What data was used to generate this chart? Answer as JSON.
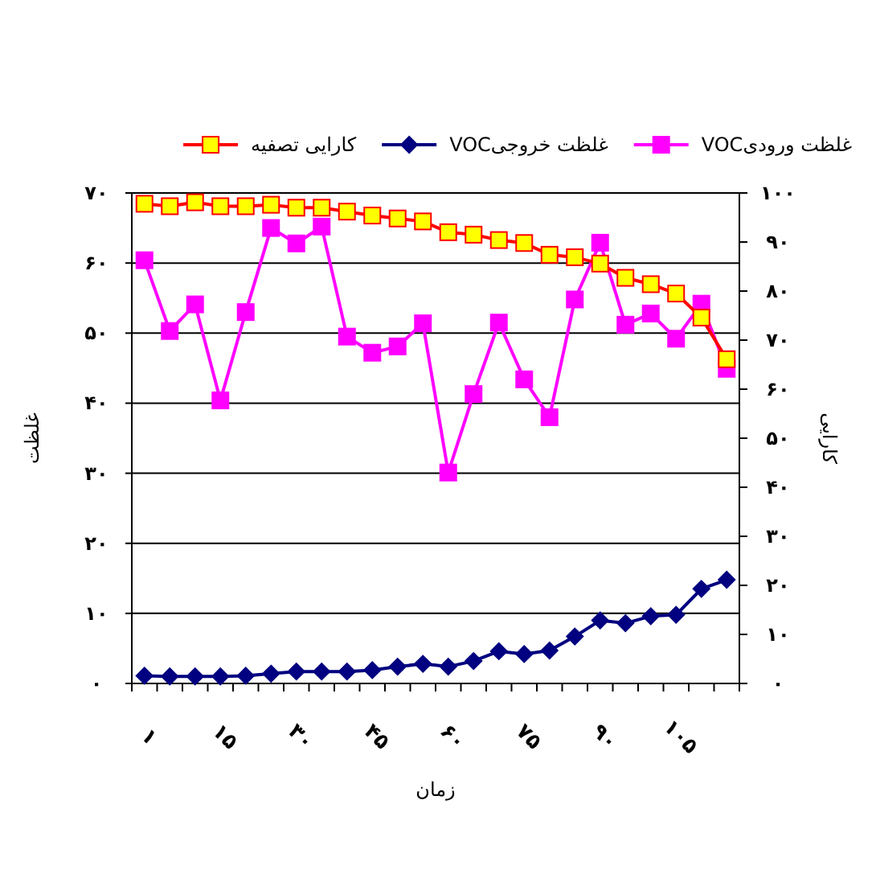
{
  "chart_data": {
    "type": "line",
    "xlabel": "زمان",
    "ylabel": "غلظت",
    "y2label": "کارایی",
    "categories": [
      "۱",
      null,
      null,
      "۱۵",
      null,
      null,
      "۳۰",
      null,
      null,
      "۴۵",
      null,
      null,
      "۶۰",
      null,
      null,
      "۷۵",
      null,
      null,
      "۹۰",
      null,
      null,
      "۱۰۵",
      null,
      null
    ],
    "series": [
      {
        "name": "غلظت ورودیVOC",
        "color": "#ff00ff",
        "marker": "square",
        "values": [
          60.4,
          50.3,
          54.1,
          40.4,
          53,
          65,
          62.8,
          65.2,
          49.5,
          47.2,
          48.1,
          51.4,
          30.1,
          41.3,
          51.5,
          43.4,
          38,
          54.8,
          62.9,
          51.2,
          52.8,
          49.2,
          54.2,
          44.9
        ]
      },
      {
        "name": "غلظت خروجیVOC",
        "color": "#000080",
        "marker": "diamond",
        "values": [
          1.1,
          1.0,
          1.0,
          1.0,
          1.1,
          1.4,
          1.7,
          1.7,
          1.7,
          1.9,
          2.4,
          2.8,
          2.4,
          3.2,
          4.6,
          4.2,
          4.7,
          6.7,
          9.0,
          8.6,
          9.6,
          9.8,
          13.5,
          14.8
        ]
      },
      {
        "name": "کارایی تصفیه",
        "color": "#ff0000",
        "colors": [
          "#ffff00",
          "#ffff00",
          "#ffff00",
          "#ffff00",
          "#ffff00",
          "#ffff00",
          "#ffff00",
          "#ffff00",
          "#ffff00",
          "#ffff00",
          "#ffff00",
          "#ffff00",
          "#ffff00",
          "#ffff00",
          "#ffff00",
          "#ffff00",
          "#ffff00",
          "#ffff00",
          "#ffff00",
          "#ffff00",
          "#ffff00",
          "#ffff00",
          "#ffff00",
          "#ffff00"
        ],
        "marker": "square",
        "axis": "y2",
        "values": [
          97.8,
          97.3,
          98.1,
          97.3,
          97.3,
          97.6,
          97.0,
          97.0,
          96.2,
          95.4,
          94.8,
          94.2,
          92.0,
          91.5,
          90.4,
          89.8,
          87.4,
          86.9,
          85.6,
          82.7,
          81.4,
          79.5,
          74.6,
          66.1
        ]
      }
    ],
    "ylim": [
      0,
      70
    ],
    "yticks": [
      {
        "value": 0,
        "label": "۰"
      },
      {
        "value": 10,
        "label": "۱۰"
      },
      {
        "value": 20,
        "label": "۲۰"
      },
      {
        "value": 30,
        "label": "۳۰"
      },
      {
        "value": 40,
        "label": "۴۰"
      },
      {
        "value": 50,
        "label": "۵۰"
      },
      {
        "value": 60,
        "label": "۶۰"
      },
      {
        "value": 70,
        "label": "۷۰"
      }
    ],
    "y2lim": [
      0,
      100
    ],
    "y2ticks": [
      {
        "value": 0,
        "label": "۰"
      },
      {
        "value": 10,
        "label": "۱۰"
      },
      {
        "value": 20,
        "label": "۲۰"
      },
      {
        "value": 30,
        "label": "۳۰"
      },
      {
        "value": 40,
        "label": "۴۰"
      },
      {
        "value": 50,
        "label": "۵۰"
      },
      {
        "value": 60,
        "label": "۶۰"
      },
      {
        "value": 70,
        "label": "۷۰"
      },
      {
        "value": 80,
        "label": "۸۰"
      },
      {
        "value": 90,
        "label": "۹۰"
      },
      {
        "value": 100,
        "label": "۱۰۰"
      }
    ],
    "grid": "y",
    "legend": "top"
  }
}
